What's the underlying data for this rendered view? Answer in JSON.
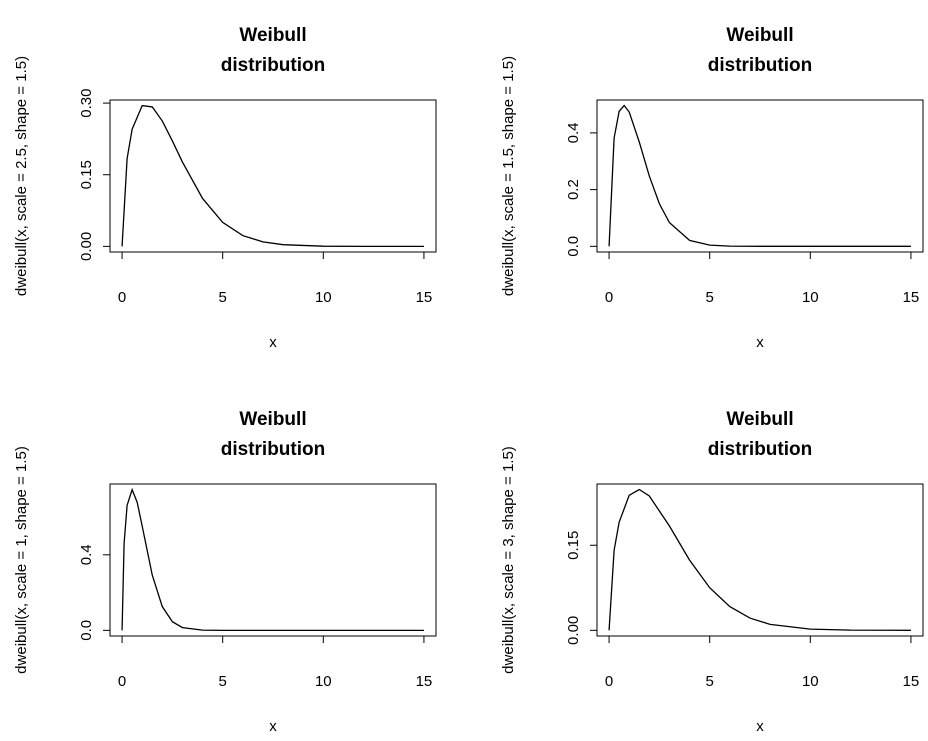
{
  "chart_data": [
    {
      "type": "line",
      "title": [
        "Weibull",
        "distribution"
      ],
      "x_label": "x",
      "y_label": "dweibull(x, scale = 2.5, shape = 1.5)",
      "x": [
        0,
        0.25,
        0.5,
        1,
        1.5,
        2,
        2.5,
        3,
        4,
        5,
        6,
        7,
        8,
        10,
        12,
        15
      ],
      "values": [
        0,
        0.1838,
        0.2454,
        0.2947,
        0.292,
        0.2624,
        0.2207,
        0.1765,
        0.1003,
        0.0501,
        0.0226,
        0.0093,
        0.0035,
        0.0004,
        0,
        0
      ],
      "color": "#000000",
      "xlim": [
        -0.6,
        15.6
      ],
      "ylim": [
        -0.0118,
        0.3065
      ],
      "xticks": [
        0,
        5,
        10,
        15
      ],
      "yticks": [
        {
          "value": 0,
          "label": "0.00"
        },
        {
          "value": 0.15,
          "label": "0.15"
        },
        {
          "value": 0.3,
          "label": "0.30"
        }
      ]
    },
    {
      "type": "line",
      "title": [
        "Weibull",
        "distribution"
      ],
      "x_label": "x",
      "y_label": "dweibull(x, scale = 1.5, shape = 1.5)",
      "x": [
        0,
        0.25,
        0.5,
        0.75,
        1,
        1.5,
        2,
        2.5,
        3,
        4,
        5,
        6,
        8,
        10,
        15
      ],
      "values": [
        0,
        0.3814,
        0.4763,
        0.4965,
        0.4737,
        0.3679,
        0.2477,
        0.1501,
        0.0836,
        0.021,
        0.0042,
        0.0007,
        0,
        0,
        0
      ],
      "color": "#000000",
      "xlim": [
        -0.6,
        15.6
      ],
      "ylim": [
        -0.02,
        0.516
      ],
      "xticks": [
        0,
        5,
        10,
        15
      ],
      "yticks": [
        {
          "value": 0,
          "label": "0.0"
        },
        {
          "value": 0.2,
          "label": "0.2"
        },
        {
          "value": 0.4,
          "label": "0.4"
        }
      ]
    },
    {
      "type": "line",
      "title": [
        "Weibull",
        "distribution"
      ],
      "x_label": "x",
      "y_label": "dweibull(x, scale = 1, shape = 1.5)",
      "x": [
        0,
        0.1,
        0.25,
        0.5,
        0.75,
        1,
        1.5,
        2,
        2.5,
        3,
        4,
        5,
        10,
        15
      ],
      "values": [
        0,
        0.4596,
        0.6619,
        0.7448,
        0.6785,
        0.5518,
        0.2927,
        0.1254,
        0.0455,
        0.0144,
        0.001,
        0,
        0,
        0
      ],
      "color": "#000000",
      "xlim": [
        -0.6,
        15.6
      ],
      "ylim": [
        -0.03,
        0.775
      ],
      "xticks": [
        0,
        5,
        10,
        15
      ],
      "yticks": [
        {
          "value": 0,
          "label": "0.0"
        },
        {
          "value": 0.4,
          "label": "0.4"
        }
      ]
    },
    {
      "type": "line",
      "title": [
        "Weibull",
        "distribution"
      ],
      "x_label": "x",
      "y_label": "dweibull(x, scale = 3, shape = 1.5)",
      "x": [
        0,
        0.25,
        0.5,
        1,
        1.5,
        2,
        3,
        4,
        5,
        6,
        7,
        8,
        10,
        12,
        15
      ],
      "values": [
        0,
        0.1409,
        0.1907,
        0.2381,
        0.2483,
        0.2369,
        0.1839,
        0.1238,
        0.0751,
        0.0418,
        0.0216,
        0.0105,
        0.0021,
        0.0003,
        0
      ],
      "color": "#000000",
      "xlim": [
        -0.6,
        15.6
      ],
      "ylim": [
        -0.01,
        0.258
      ],
      "xticks": [
        0,
        5,
        10,
        15
      ],
      "yticks": [
        {
          "value": 0,
          "label": "0.00"
        },
        {
          "value": 0.15,
          "label": "0.15"
        }
      ]
    }
  ]
}
